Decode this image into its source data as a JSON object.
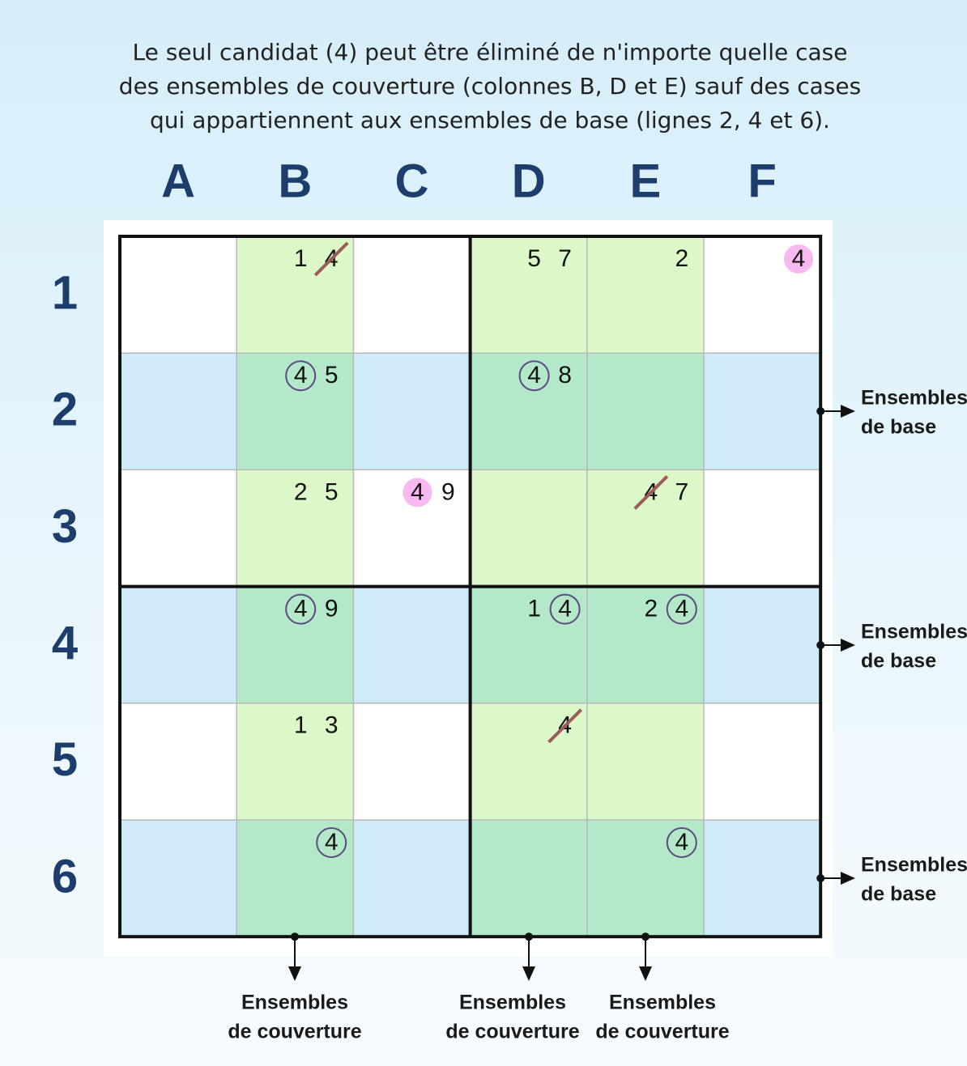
{
  "caption": [
    "Le seul candidat (4) peut être éliminé de n'importe quelle case",
    "des ensembles de couverture (colonnes B, D et E) sauf des cases",
    "qui appartiennent aux ensembles de base (lignes 2, 4 et 6)."
  ],
  "columns": [
    "A",
    "B",
    "C",
    "D",
    "E",
    "F"
  ],
  "rows": [
    "1",
    "2",
    "3",
    "4",
    "5",
    "6"
  ],
  "grid": [
    [
      {
        "fill": "#ffffff",
        "candidates": []
      },
      {
        "fill": "#dcf8c8",
        "candidates": [
          {
            "digit": "1"
          },
          {
            "digit": "4",
            "mark": "crossed"
          }
        ]
      },
      {
        "fill": "#ffffff",
        "candidates": []
      },
      {
        "fill": "#dcf8c8",
        "candidates": [
          {
            "digit": "5"
          },
          {
            "digit": "7"
          }
        ]
      },
      {
        "fill": "#dcf8c8",
        "candidates": [
          {
            "digit": "2"
          }
        ]
      },
      {
        "fill": "#ffffff",
        "candidates": [
          {
            "digit": "4",
            "mark": "pink"
          }
        ]
      }
    ],
    [
      {
        "fill": "#cfebf8",
        "candidates": []
      },
      {
        "fill": "#b3e9c9",
        "candidates": [
          {
            "digit": "4",
            "mark": "circled"
          },
          {
            "digit": "5"
          }
        ]
      },
      {
        "fill": "#cfebf8",
        "candidates": []
      },
      {
        "fill": "#b3e9c9",
        "candidates": [
          {
            "digit": "4",
            "mark": "circled"
          },
          {
            "digit": "8"
          }
        ]
      },
      {
        "fill": "#b3e9c9",
        "candidates": []
      },
      {
        "fill": "#cfebf8",
        "candidates": []
      }
    ],
    [
      {
        "fill": "#ffffff",
        "candidates": []
      },
      {
        "fill": "#dcf8c8",
        "candidates": [
          {
            "digit": "2"
          },
          {
            "digit": "5"
          }
        ]
      },
      {
        "fill": "#ffffff",
        "candidates": [
          {
            "digit": "4",
            "mark": "pink"
          },
          {
            "digit": "9"
          }
        ]
      },
      {
        "fill": "#dcf8c8",
        "candidates": []
      },
      {
        "fill": "#dcf8c8",
        "candidates": [
          {
            "digit": "4",
            "mark": "crossed"
          },
          {
            "digit": "7"
          }
        ]
      },
      {
        "fill": "#ffffff",
        "candidates": []
      }
    ],
    [
      {
        "fill": "#cfebf8",
        "candidates": []
      },
      {
        "fill": "#b3e9c9",
        "candidates": [
          {
            "digit": "4",
            "mark": "circled"
          },
          {
            "digit": "9"
          }
        ]
      },
      {
        "fill": "#cfebf8",
        "candidates": []
      },
      {
        "fill": "#b3e9c9",
        "candidates": [
          {
            "digit": "1"
          },
          {
            "digit": "4",
            "mark": "circled"
          }
        ]
      },
      {
        "fill": "#b3e9c9",
        "candidates": [
          {
            "digit": "2"
          },
          {
            "digit": "4",
            "mark": "circled"
          }
        ]
      },
      {
        "fill": "#cfebf8",
        "candidates": []
      }
    ],
    [
      {
        "fill": "#ffffff",
        "candidates": []
      },
      {
        "fill": "#dcf8c8",
        "candidates": [
          {
            "digit": "1"
          },
          {
            "digit": "3"
          }
        ]
      },
      {
        "fill": "#ffffff",
        "candidates": []
      },
      {
        "fill": "#dcf8c8",
        "candidates": [
          {
            "digit": "4",
            "mark": "crossed"
          }
        ]
      },
      {
        "fill": "#dcf8c8",
        "candidates": []
      },
      {
        "fill": "#ffffff",
        "candidates": []
      }
    ],
    [
      {
        "fill": "#cfebf8",
        "candidates": []
      },
      {
        "fill": "#b3e9c9",
        "candidates": [
          {
            "digit": "4",
            "mark": "circled"
          }
        ]
      },
      {
        "fill": "#cfebf8",
        "candidates": []
      },
      {
        "fill": "#b3e9c9",
        "candidates": []
      },
      {
        "fill": "#b3e9c9",
        "candidates": [
          {
            "digit": "4",
            "mark": "circled"
          }
        ]
      },
      {
        "fill": "#cfebf8",
        "candidates": []
      }
    ]
  ],
  "base_labels": [
    [
      "Ensembles",
      "de base"
    ],
    [
      "Ensembles",
      "de base"
    ],
    [
      "Ensembles",
      "de base"
    ]
  ],
  "cover_labels": [
    [
      "Ensembles",
      "de couverture"
    ],
    [
      "Ensembles",
      "de couverture"
    ],
    [
      "Ensembles",
      "de couverture"
    ]
  ]
}
